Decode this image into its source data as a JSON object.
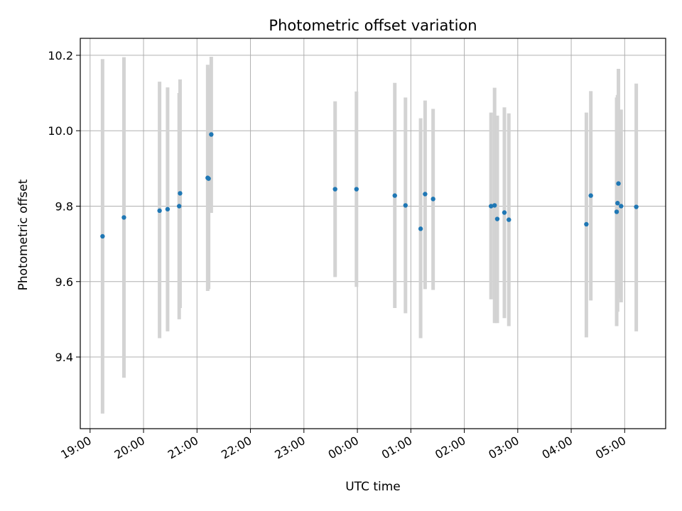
{
  "chart_data": {
    "type": "scatter",
    "title": "Photometric offset variation",
    "xlabel": "UTC time",
    "ylabel": "Photometric offset",
    "x_ticks": [
      "19:00",
      "20:00",
      "21:00",
      "22:00",
      "23:00",
      "00:00",
      "01:00",
      "02:00",
      "03:00",
      "04:00",
      "05:00"
    ],
    "x_tick_hours": [
      19,
      20,
      21,
      22,
      23,
      24,
      25,
      26,
      27,
      28,
      29
    ],
    "y_ticks": [
      "9.4",
      "9.6",
      "9.8",
      "10.0",
      "10.2"
    ],
    "y_tick_values": [
      9.4,
      9.6,
      9.8,
      10.0,
      10.2
    ],
    "xlim": [
      "18:49",
      "05:46"
    ],
    "ylim": [
      9.21,
      10.245
    ],
    "grid": true,
    "point_color": "#1f77b4",
    "errorbar_color": "#d3d3d3",
    "points": [
      {
        "t": "19:14",
        "y": 9.72,
        "lo": 9.25,
        "hi": 10.19
      },
      {
        "t": "19:38",
        "y": 9.77,
        "lo": 9.345,
        "hi": 10.195
      },
      {
        "t": "20:18",
        "y": 9.788,
        "lo": 9.45,
        "hi": 10.13
      },
      {
        "t": "20:27",
        "y": 9.792,
        "lo": 9.468,
        "hi": 10.115
      },
      {
        "t": "20:40",
        "y": 9.8,
        "lo": 9.5,
        "hi": 10.1
      },
      {
        "t": "20:41",
        "y": 9.834,
        "lo": 9.53,
        "hi": 10.136
      },
      {
        "t": "21:12",
        "y": 9.875,
        "lo": 9.575,
        "hi": 10.175
      },
      {
        "t": "21:13",
        "y": 9.873,
        "lo": 9.58,
        "hi": 10.165
      },
      {
        "t": "21:16",
        "y": 9.99,
        "lo": 9.782,
        "hi": 10.196
      },
      {
        "t": "23:35",
        "y": 9.845,
        "lo": 9.612,
        "hi": 10.078
      },
      {
        "t": "23:59",
        "y": 9.845,
        "lo": 9.586,
        "hi": 10.104
      },
      {
        "t": "00:42",
        "y": 9.828,
        "lo": 9.53,
        "hi": 10.127
      },
      {
        "t": "00:54",
        "y": 9.802,
        "lo": 9.516,
        "hi": 10.088
      },
      {
        "t": "01:11",
        "y": 9.74,
        "lo": 9.45,
        "hi": 10.033
      },
      {
        "t": "01:16",
        "y": 9.832,
        "lo": 9.58,
        "hi": 10.08
      },
      {
        "t": "01:25",
        "y": 9.819,
        "lo": 9.578,
        "hi": 10.058
      },
      {
        "t": "02:30",
        "y": 9.8,
        "lo": 9.553,
        "hi": 10.048
      },
      {
        "t": "02:34",
        "y": 9.802,
        "lo": 9.49,
        "hi": 10.114
      },
      {
        "t": "02:37",
        "y": 9.766,
        "lo": 9.49,
        "hi": 10.04
      },
      {
        "t": "02:45",
        "y": 9.783,
        "lo": 9.503,
        "hi": 10.062
      },
      {
        "t": "02:50",
        "y": 9.764,
        "lo": 9.482,
        "hi": 10.046
      },
      {
        "t": "04:17",
        "y": 9.752,
        "lo": 9.452,
        "hi": 10.048
      },
      {
        "t": "04:22",
        "y": 9.828,
        "lo": 9.55,
        "hi": 10.105
      },
      {
        "t": "04:51",
        "y": 9.785,
        "lo": 9.482,
        "hi": 10.088
      },
      {
        "t": "04:52",
        "y": 9.808,
        "lo": 9.52,
        "hi": 10.095
      },
      {
        "t": "04:53",
        "y": 9.86,
        "lo": 9.555,
        "hi": 10.164
      },
      {
        "t": "04:56",
        "y": 9.8,
        "lo": 9.545,
        "hi": 10.056
      },
      {
        "t": "05:13",
        "y": 9.798,
        "lo": 9.468,
        "hi": 10.125
      }
    ]
  }
}
